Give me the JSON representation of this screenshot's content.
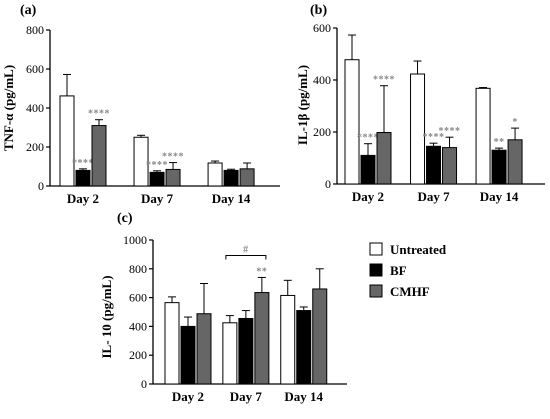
{
  "chart_data": [
    {
      "panel": "(a)",
      "type": "bar",
      "ylabel": "TNF-α (pg/mL)",
      "categories": [
        "Day 2",
        "Day 7",
        "Day 14"
      ],
      "ylim": [
        0,
        800
      ],
      "yticks": [
        "0",
        "200",
        "400",
        "600",
        "800"
      ],
      "series": [
        {
          "name": "Untreated",
          "values": [
            462,
            250,
            118
          ],
          "errors": [
            110,
            10,
            10
          ]
        },
        {
          "name": "BF",
          "values": [
            80,
            70,
            80
          ],
          "errors": [
            8,
            8,
            6
          ]
        },
        {
          "name": "CMHF",
          "values": [
            310,
            85,
            88
          ],
          "errors": [
            30,
            35,
            30
          ]
        }
      ],
      "annotations": [
        {
          "category": 0,
          "series": 1,
          "text": "****"
        },
        {
          "category": 0,
          "series": 2,
          "text": "****"
        },
        {
          "category": 1,
          "series": 1,
          "text": "****"
        },
        {
          "category": 1,
          "series": 2,
          "text": "****"
        }
      ]
    },
    {
      "panel": "(b)",
      "type": "bar",
      "ylabel": "IL-1β (pg/mL)",
      "categories": [
        "Day 2",
        "Day 7",
        "Day 14"
      ],
      "ylim": [
        0,
        600
      ],
      "yticks": [
        "0",
        "200",
        "400",
        "600"
      ],
      "series": [
        {
          "name": "Untreated",
          "values": [
            478,
            423,
            368
          ],
          "errors": [
            95,
            50,
            3
          ]
        },
        {
          "name": "BF",
          "values": [
            110,
            145,
            130
          ],
          "errors": [
            45,
            12,
            8
          ]
        },
        {
          "name": "CMHF",
          "values": [
            198,
            140,
            170
          ],
          "errors": [
            180,
            40,
            45
          ]
        }
      ],
      "annotations": [
        {
          "category": 0,
          "series": 1,
          "text": "****"
        },
        {
          "category": 0,
          "series": 2,
          "text": "****"
        },
        {
          "category": 1,
          "series": 1,
          "text": "****"
        },
        {
          "category": 1,
          "series": 2,
          "text": "****"
        },
        {
          "category": 2,
          "series": 1,
          "text": "**"
        },
        {
          "category": 2,
          "series": 2,
          "text": "*"
        }
      ]
    },
    {
      "panel": "(c)",
      "type": "bar",
      "ylabel": "IL- 10 (pg/mL)",
      "categories": [
        "Day 2",
        "Day 7",
        "Day 14"
      ],
      "ylim": [
        0,
        1000
      ],
      "yticks": [
        "0",
        "200",
        "400",
        "600",
        "800",
        "1000"
      ],
      "series": [
        {
          "name": "Untreated",
          "values": [
            565,
            425,
            615
          ],
          "errors": [
            40,
            50,
            105
          ]
        },
        {
          "name": "BF",
          "values": [
            400,
            455,
            510
          ],
          "errors": [
            65,
            55,
            25
          ]
        },
        {
          "name": "CMHF",
          "values": [
            488,
            635,
            660
          ],
          "errors": [
            210,
            105,
            140
          ]
        }
      ],
      "annotations": [
        {
          "category": 1,
          "series": 2,
          "text": "**"
        }
      ],
      "bracket": {
        "category": 1,
        "from_series": 0,
        "to_series": 2,
        "text": "#"
      }
    }
  ],
  "legend": {
    "items": [
      {
        "name": "Untreated",
        "color": "#ffffff"
      },
      {
        "name": "BF",
        "color": "#000000"
      },
      {
        "name": "CMHF",
        "color": "#666666"
      }
    ]
  },
  "colors": {
    "Untreated": "#ffffff",
    "BF": "#000000",
    "CMHF": "#666666",
    "significance": "#888888"
  }
}
